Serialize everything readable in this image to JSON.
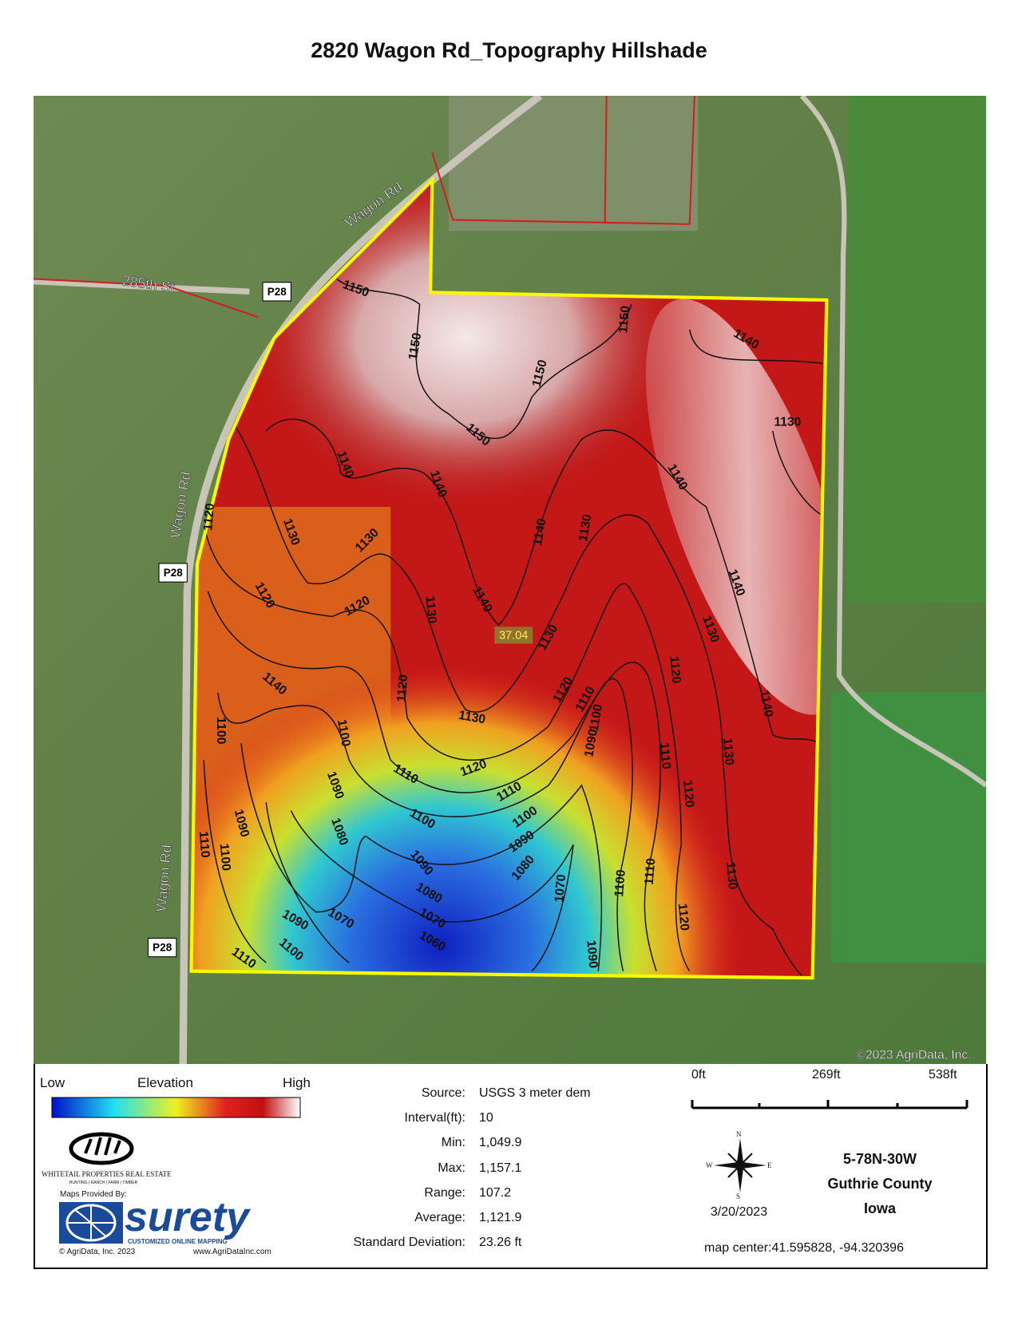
{
  "header": {
    "title": "2820 Wagon Rd_Topography Hillshade"
  },
  "map": {
    "roads": [
      "Wagon Rd",
      "285th St",
      "Wagon Rd",
      "Wagon Rd"
    ],
    "shields": [
      "P28",
      "P28",
      "P28"
    ],
    "acres": "37.04",
    "copyright": "©2023 AgriData, Inc.",
    "contour_labels": [
      1150,
      1150,
      1150,
      1150,
      1150,
      1140,
      1130,
      1140,
      1140,
      1140,
      1140,
      1130,
      1130,
      1130,
      1120,
      1120,
      1120,
      1130,
      1140,
      1130,
      1140,
      1130,
      1140,
      1120,
      1130,
      1120,
      1110,
      1100,
      1120,
      1140,
      1100,
      1100,
      1090,
      1110,
      1130,
      1110,
      1120,
      1110,
      1090,
      1120,
      1100,
      1100,
      1090,
      1080,
      1090,
      1090,
      1080,
      1130,
      1110,
      1100,
      1070,
      1080,
      1100,
      1110,
      1090,
      1070,
      1070,
      1120,
      1060,
      1100,
      1110,
      1090
    ]
  },
  "legend": {
    "low": "Low",
    "title": "Elevation",
    "high": "High"
  },
  "logos": {
    "whitetail": "Whitetail Properties Real Estate",
    "whitetail_tagline": "HUNTING | RANCH | FARM | TIMBER",
    "provided_by": "Maps Provided By:",
    "surety": "surety",
    "surety_tagline": "CUSTOMIZED ONLINE MAPPING",
    "copyright": "© AgriData, Inc. 2023",
    "url": "www.AgriDataInc.com"
  },
  "stats": [
    {
      "label": "Source:",
      "value": "USGS 3 meter dem"
    },
    {
      "label": "Interval(ft):",
      "value": "10"
    },
    {
      "label": "Min:",
      "value": "1,049.9"
    },
    {
      "label": "Max:",
      "value": "1,157.1"
    },
    {
      "label": "Range:",
      "value": "107.2"
    },
    {
      "label": "Average:",
      "value": "1,121.9"
    },
    {
      "label": "Standard Deviation:",
      "value": "23.26 ft"
    }
  ],
  "scale": [
    "0ft",
    "269ft",
    "538ft"
  ],
  "compass": {
    "n": "N",
    "s": "S",
    "w": "W",
    "e": "E"
  },
  "date": "3/20/2023",
  "location": [
    "5-78N-30W",
    "Guthrie County",
    "Iowa"
  ],
  "map_center": "map center:41.595828, -94.320396"
}
